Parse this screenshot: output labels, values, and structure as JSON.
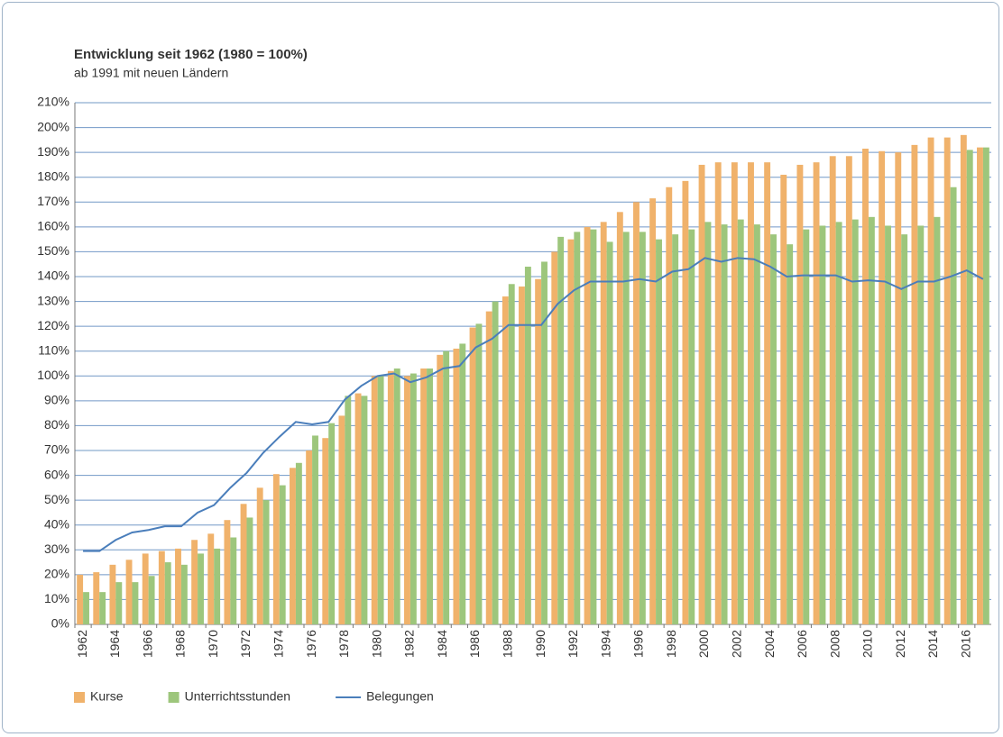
{
  "chart_data": {
    "type": "bar",
    "title": "Entwicklung seit 1962 (1980 = 100%)",
    "subtitle": "ab 1991 mit neuen Ländern",
    "categories": [
      "1962",
      null,
      "1964",
      null,
      "1966",
      null,
      "1968",
      null,
      "1970",
      null,
      "1972",
      null,
      "1974",
      null,
      "1976",
      null,
      "1978",
      null,
      "1980",
      null,
      "1982",
      null,
      "1984",
      null,
      "1986",
      null,
      "1988",
      null,
      "1990",
      null,
      "1992",
      null,
      "1994",
      null,
      "1996",
      null,
      "1998",
      null,
      "2000",
      null,
      "2002",
      null,
      "2004",
      null,
      "2006",
      null,
      "2008",
      null,
      "2010",
      null,
      "2012",
      null,
      "2014",
      null,
      "2016",
      null
    ],
    "series": [
      {
        "name": "Kurse",
        "type": "bar",
        "color": "#f0b26b",
        "values": [
          20,
          21,
          24,
          26,
          28.5,
          29.5,
          30.5,
          34,
          36.5,
          42,
          48.5,
          55,
          60.5,
          63,
          70,
          75,
          84,
          93,
          100,
          102,
          100,
          103,
          108.5,
          111,
          119.5,
          126,
          132,
          136,
          139,
          150,
          155,
          160,
          162,
          166,
          170,
          171.5,
          176,
          178.5,
          185,
          186,
          186,
          186,
          186,
          181,
          185,
          186,
          188.5,
          188.5,
          191.5,
          190.5,
          190,
          193,
          196,
          196,
          197,
          192
        ]
      },
      {
        "name": "Unterrichtsstunden",
        "type": "bar",
        "color": "#9dc67c",
        "values": [
          13,
          13,
          17,
          17,
          19.5,
          25,
          24,
          28.5,
          30.5,
          35,
          43,
          50,
          56,
          65,
          76,
          81,
          92,
          92,
          100,
          103,
          101,
          103,
          110,
          113,
          121,
          130,
          137,
          144,
          146,
          156,
          158,
          159,
          154,
          158,
          158,
          155,
          157,
          159,
          162,
          161,
          163,
          161,
          157,
          153,
          159,
          160.5,
          162,
          163,
          164,
          160.5,
          157,
          160.5,
          164,
          176,
          191,
          192
        ]
      },
      {
        "name": "Belegungen",
        "type": "line",
        "color": "#4a7ebb",
        "values": [
          29.5,
          29.5,
          34,
          37,
          38,
          39.5,
          39.5,
          45,
          48,
          55,
          61,
          69,
          75.5,
          81.5,
          80.5,
          81.5,
          90.5,
          96,
          100,
          101,
          97.5,
          99.5,
          103,
          104,
          111.5,
          115,
          120.5,
          120.5,
          120.5,
          129,
          134.5,
          138,
          138,
          138,
          139,
          138,
          142,
          143,
          147.5,
          146,
          147.5,
          147,
          144,
          140,
          140.5,
          140.5,
          140.5,
          138,
          138.5,
          138,
          135,
          138,
          138,
          140,
          142.5,
          139
        ]
      }
    ],
    "ylim": [
      0,
      210
    ],
    "yticks": [
      {
        "value": 0,
        "label": "0%"
      },
      {
        "value": 10,
        "label": "10%"
      },
      {
        "value": 20,
        "label": "20%"
      },
      {
        "value": 30,
        "label": "30%"
      },
      {
        "value": 40,
        "label": "40%"
      },
      {
        "value": 50,
        "label": "50%"
      },
      {
        "value": 60,
        "label": "60%"
      },
      {
        "value": 70,
        "label": "70%"
      },
      {
        "value": 80,
        "label": "80%"
      },
      {
        "value": 90,
        "label": "90%"
      },
      {
        "value": 100,
        "label": "100%"
      },
      {
        "value": 110,
        "label": "110%"
      },
      {
        "value": 120,
        "label": "120%"
      },
      {
        "value": 130,
        "label": "130%"
      },
      {
        "value": 140,
        "label": "140%"
      },
      {
        "value": 150,
        "label": "150%"
      },
      {
        "value": 160,
        "label": "160%"
      },
      {
        "value": 170,
        "label": "170%"
      },
      {
        "value": 180,
        "label": "180%"
      },
      {
        "value": 190,
        "label": "190%"
      },
      {
        "value": 200,
        "label": "200%"
      },
      {
        "value": 210,
        "label": "210%"
      }
    ],
    "grid": true,
    "grid_color": "#4f7fb8",
    "legend": "bottom"
  }
}
